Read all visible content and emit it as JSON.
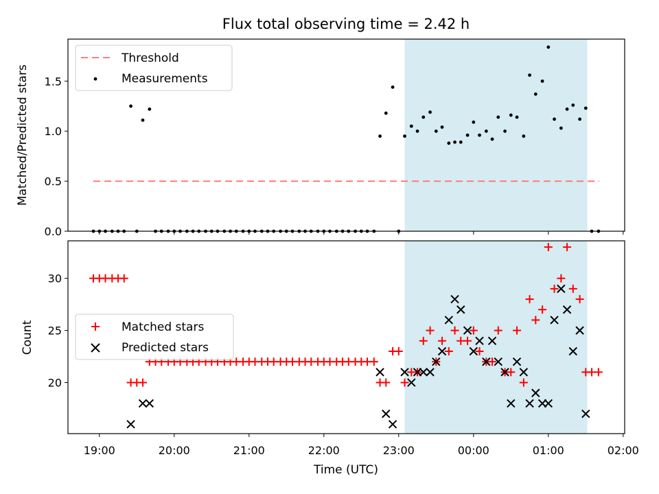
{
  "chart_data": [
    {
      "type": "scatter",
      "title": "Flux total observing time = 2.42 h",
      "ylabel": "Matched/Predicted stars",
      "ylim": [
        0,
        1.92
      ],
      "yticks": [
        0.0,
        0.5,
        1.0,
        1.5
      ],
      "ytick_labels": [
        "0.0",
        "0.5",
        "1.0",
        "1.5"
      ],
      "xlim_hours": [
        18.58,
        26.02
      ],
      "grid": false,
      "legend_position": "upper-left",
      "shaded_interval_hours": [
        23.08,
        25.52
      ],
      "shade_color": "#add8e6",
      "threshold": {
        "name": "Threshold",
        "y": 0.5,
        "x_range_hours": [
          18.92,
          25.68
        ],
        "color": "#ff7b7b",
        "style": "dashed"
      },
      "series": [
        {
          "name": "Measurements",
          "marker": "dot",
          "color": "#000000",
          "x": [
            18.92,
            19.0,
            19.08,
            19.17,
            19.25,
            19.33,
            19.42,
            19.5,
            19.58,
            19.67,
            19.75,
            19.83,
            19.92,
            20.0,
            20.08,
            20.17,
            20.25,
            20.33,
            20.42,
            20.5,
            20.58,
            20.67,
            20.75,
            20.83,
            20.92,
            21.0,
            21.08,
            21.17,
            21.25,
            21.33,
            21.42,
            21.5,
            21.58,
            21.67,
            21.75,
            21.83,
            21.92,
            22.0,
            22.08,
            22.17,
            22.25,
            22.33,
            22.42,
            22.5,
            22.58,
            22.67,
            22.75,
            22.83,
            22.92,
            23.0,
            23.08,
            23.17,
            23.25,
            23.33,
            23.42,
            23.5,
            23.58,
            23.67,
            23.75,
            23.83,
            23.92,
            24.0,
            24.08,
            24.17,
            24.25,
            24.33,
            24.42,
            24.5,
            24.58,
            24.67,
            24.75,
            24.83,
            24.92,
            25.0,
            25.08,
            25.17,
            25.25,
            25.33,
            25.42,
            25.5,
            25.58,
            25.67
          ],
          "y": [
            0,
            0,
            0,
            0,
            0,
            0,
            1.25,
            0,
            1.11,
            1.22,
            0,
            0,
            0,
            0,
            0,
            0,
            0,
            0,
            0,
            0,
            0,
            0,
            0,
            0,
            0,
            0,
            0,
            0,
            0,
            0,
            0,
            0,
            0,
            0,
            0,
            0,
            0,
            0,
            0,
            0,
            0,
            0,
            0,
            0,
            0,
            0,
            0.95,
            1.18,
            1.44,
            0,
            0.95,
            1.05,
            1.0,
            1.14,
            1.19,
            1.0,
            1.04,
            0.88,
            0.89,
            0.89,
            0.96,
            1.09,
            0.96,
            1.0,
            0.92,
            1.14,
            1.0,
            1.16,
            1.14,
            0.95,
            1.56,
            1.37,
            1.5,
            1.84,
            1.12,
            1.03,
            1.22,
            1.26,
            1.12,
            1.23,
            0,
            0
          ]
        }
      ]
    },
    {
      "type": "scatter",
      "title": "",
      "xlabel": "Time (UTC)",
      "ylabel": "Count",
      "ylim": [
        15.1,
        33.6
      ],
      "yticks": [
        20,
        25,
        30
      ],
      "ytick_labels": [
        "20",
        "25",
        "30"
      ],
      "xlim_hours": [
        18.58,
        26.02
      ],
      "xticks_hours": [
        19,
        20,
        21,
        22,
        23,
        24,
        25,
        26
      ],
      "xtick_labels": [
        "19:00",
        "20:00",
        "21:00",
        "22:00",
        "23:00",
        "00:00",
        "01:00",
        "02:00"
      ],
      "grid": false,
      "legend_position": "center-left",
      "shaded_interval_hours": [
        23.08,
        25.52
      ],
      "shade_color": "#add8e6",
      "series": [
        {
          "name": "Matched stars",
          "marker": "plus",
          "color": "#ff0000",
          "x": [
            18.92,
            19.0,
            19.08,
            19.17,
            19.25,
            19.33,
            19.42,
            19.5,
            19.58,
            19.67,
            19.75,
            19.83,
            19.92,
            20.0,
            20.08,
            20.17,
            20.25,
            20.33,
            20.42,
            20.5,
            20.58,
            20.67,
            20.75,
            20.83,
            20.92,
            21.0,
            21.08,
            21.17,
            21.25,
            21.33,
            21.42,
            21.5,
            21.58,
            21.67,
            21.75,
            21.83,
            21.92,
            22.0,
            22.08,
            22.17,
            22.25,
            22.33,
            22.42,
            22.5,
            22.58,
            22.67,
            22.75,
            22.83,
            22.92,
            23.0,
            23.08,
            23.17,
            23.25,
            23.33,
            23.42,
            23.5,
            23.58,
            23.67,
            23.75,
            23.83,
            23.92,
            24.0,
            24.08,
            24.17,
            24.25,
            24.33,
            24.42,
            24.5,
            24.58,
            24.67,
            24.75,
            24.83,
            24.92,
            25.0,
            25.08,
            25.17,
            25.25,
            25.33,
            25.42,
            25.5,
            25.58,
            25.67
          ],
          "y": [
            30,
            30,
            30,
            30,
            30,
            30,
            20,
            20,
            20,
            22,
            22,
            22,
            22,
            22,
            22,
            22,
            22,
            22,
            22,
            22,
            22,
            22,
            22,
            22,
            22,
            22,
            22,
            22,
            22,
            22,
            22,
            22,
            22,
            22,
            22,
            22,
            22,
            22,
            22,
            22,
            22,
            22,
            22,
            22,
            22,
            22,
            20,
            20,
            23,
            23,
            20,
            21,
            21,
            24,
            25,
            22,
            24,
            23,
            25,
            24,
            24,
            25,
            23,
            22,
            22,
            25,
            21,
            21,
            25,
            20,
            28,
            26,
            27,
            33,
            29,
            30,
            33,
            29,
            28,
            21,
            21,
            21
          ]
        },
        {
          "name": "Predicted stars",
          "marker": "x",
          "color": "#000000",
          "x": [
            19.42,
            19.58,
            19.67,
            22.75,
            22.83,
            22.92,
            23.08,
            23.17,
            23.25,
            23.33,
            23.42,
            23.5,
            23.58,
            23.67,
            23.75,
            23.83,
            23.92,
            24.0,
            24.08,
            24.17,
            24.25,
            24.33,
            24.42,
            24.5,
            24.58,
            24.67,
            24.75,
            24.83,
            24.92,
            25.0,
            25.08,
            25.17,
            25.25,
            25.33,
            25.42,
            25.5
          ],
          "y": [
            16,
            18,
            18,
            21,
            17,
            16,
            21,
            20,
            21,
            21,
            21,
            22,
            23,
            26,
            28,
            27,
            25,
            23,
            24,
            22,
            24,
            22,
            21,
            18,
            22,
            21,
            18,
            19,
            18,
            18,
            26,
            29,
            27,
            23,
            25,
            17
          ]
        }
      ]
    }
  ]
}
